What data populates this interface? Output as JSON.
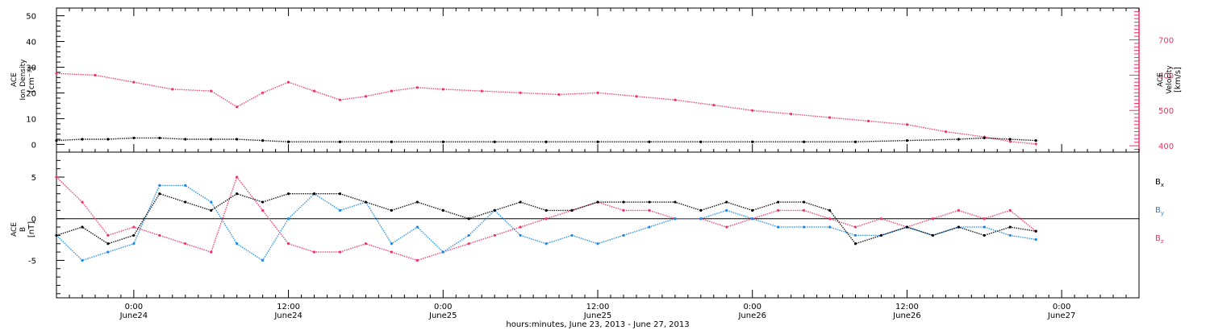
{
  "chart_data": [
    {
      "type": "scatter",
      "panel": "top",
      "ylabel_lines": [
        "ACE",
        "Ion Density",
        "[cm⁻³]"
      ],
      "ylim": [
        -3,
        53
      ],
      "yticks": [
        0,
        10,
        20,
        30,
        40,
        50
      ],
      "y2label_lines": [
        "ACE",
        "Velocity",
        "[km/s]"
      ],
      "y2lim": [
        382,
        790
      ],
      "y2ticks": [
        400,
        500,
        600,
        700
      ],
      "x_hours_domain": [
        -6,
        78
      ],
      "series": [
        {
          "name": "",
          "color": "#000000",
          "axis": "left",
          "x": [
            -6,
            -4,
            -2,
            0,
            2,
            4,
            6,
            8,
            10,
            12,
            16,
            20,
            24,
            28,
            32,
            36,
            40,
            44,
            48,
            52,
            56,
            60,
            64,
            66,
            68,
            70
          ],
          "values": [
            1.5,
            2.0,
            2.0,
            2.5,
            2.5,
            2.0,
            2.0,
            2.0,
            1.5,
            1.0,
            1.0,
            1.0,
            1.0,
            1.0,
            1.0,
            1.0,
            1.0,
            1.0,
            1.0,
            1.0,
            1.0,
            1.5,
            2.0,
            2.5,
            2.0,
            1.5
          ]
        },
        {
          "name": "",
          "color": "#ee3366",
          "axis": "right",
          "x": [
            -6,
            -3,
            0,
            3,
            6,
            8,
            10,
            12,
            14,
            16,
            18,
            20,
            22,
            24,
            27,
            30,
            33,
            36,
            39,
            42,
            45,
            48,
            51,
            54,
            57,
            60,
            63,
            66,
            68,
            70
          ],
          "values": [
            605,
            600,
            580,
            560,
            555,
            510,
            550,
            580,
            555,
            530,
            540,
            555,
            565,
            560,
            555,
            550,
            545,
            550,
            540,
            530,
            515,
            500,
            490,
            480,
            470,
            460,
            440,
            425,
            412,
            405
          ]
        }
      ]
    },
    {
      "type": "scatter",
      "panel": "bottom",
      "ylabel_lines": [
        "ACE",
        "B",
        "[nT]"
      ],
      "ylim": [
        -9.5,
        8
      ],
      "yticks": [
        -5,
        0,
        5
      ],
      "x_hours_domain": [
        -6,
        78
      ],
      "xticks": [
        {
          "hour": 0,
          "time": "0:00",
          "date": "June24"
        },
        {
          "hour": 12,
          "time": "12:00",
          "date": "June24"
        },
        {
          "hour": 24,
          "time": "0:00",
          "date": "June25"
        },
        {
          "hour": 36,
          "time": "12:00",
          "date": "June25"
        },
        {
          "hour": 48,
          "time": "0:00",
          "date": "June26"
        },
        {
          "hour": 60,
          "time": "12:00",
          "date": "June26"
        },
        {
          "hour": 72,
          "time": "0:00",
          "date": "June27"
        }
      ],
      "xlabel": "hours:minutes, June 23, 2013 - June 27, 2013",
      "series": [
        {
          "name": "Bx",
          "color": "#000000",
          "x": [
            -6,
            -4,
            -2,
            0,
            2,
            4,
            6,
            8,
            10,
            12,
            14,
            16,
            18,
            20,
            22,
            24,
            26,
            28,
            30,
            32,
            34,
            36,
            38,
            40,
            42,
            44,
            46,
            48,
            50,
            52,
            54,
            56,
            58,
            60,
            62,
            64,
            66,
            68,
            70
          ],
          "values": [
            -2,
            -1,
            -3,
            -2,
            3,
            2,
            1,
            3,
            2,
            3,
            3,
            3,
            2,
            1,
            2,
            1,
            0,
            1,
            2,
            1,
            1,
            2,
            2,
            2,
            2,
            1,
            2,
            1,
            2,
            2,
            1,
            -3,
            -2,
            -1,
            -2,
            -1,
            -2,
            -1,
            -1.5
          ]
        },
        {
          "name": "By",
          "color": "#1a88e6",
          "x": [
            -6,
            -4,
            -2,
            0,
            2,
            4,
            6,
            8,
            10,
            12,
            14,
            16,
            18,
            20,
            22,
            24,
            26,
            28,
            30,
            32,
            34,
            36,
            38,
            40,
            42,
            44,
            46,
            48,
            50,
            52,
            54,
            56,
            58,
            60,
            62,
            64,
            66,
            68,
            70
          ],
          "values": [
            -2,
            -5,
            -4,
            -3,
            4,
            4,
            2,
            -3,
            -5,
            0,
            3,
            1,
            2,
            -3,
            -1,
            -4,
            -2,
            1,
            -2,
            -3,
            -2,
            -3,
            -2,
            -1,
            0,
            0,
            1,
            0,
            -1,
            -1,
            -1,
            -2,
            -2,
            -1,
            -2,
            -1,
            -1,
            -2,
            -2.5
          ]
        },
        {
          "name": "Bz",
          "color": "#ee3366",
          "x": [
            -6,
            -4,
            -2,
            0,
            2,
            4,
            6,
            8,
            10,
            12,
            14,
            16,
            18,
            20,
            22,
            24,
            26,
            28,
            30,
            32,
            34,
            36,
            38,
            40,
            42,
            44,
            46,
            48,
            50,
            52,
            54,
            56,
            58,
            60,
            62,
            64,
            66,
            68,
            70
          ],
          "values": [
            5,
            2,
            -2,
            -1,
            -2,
            -3,
            -4,
            5,
            1,
            -3,
            -4,
            -4,
            -3,
            -4,
            -5,
            -4,
            -3,
            -2,
            -1,
            0,
            1,
            2,
            1,
            1,
            0,
            0,
            -1,
            0,
            1,
            1,
            0,
            -1,
            0,
            -1,
            0,
            1,
            0,
            1,
            -1.5
          ]
        }
      ]
    }
  ],
  "legend": {
    "bx": {
      "label": "B",
      "sub": "x",
      "color": "#000000"
    },
    "by": {
      "label": "B",
      "sub": "y",
      "color": "#1a88e6"
    },
    "bz": {
      "label": "B",
      "sub": "z",
      "color": "#ee3366"
    }
  },
  "colors": {
    "axis": "#000000",
    "velocity_axis": "#ee3366"
  }
}
